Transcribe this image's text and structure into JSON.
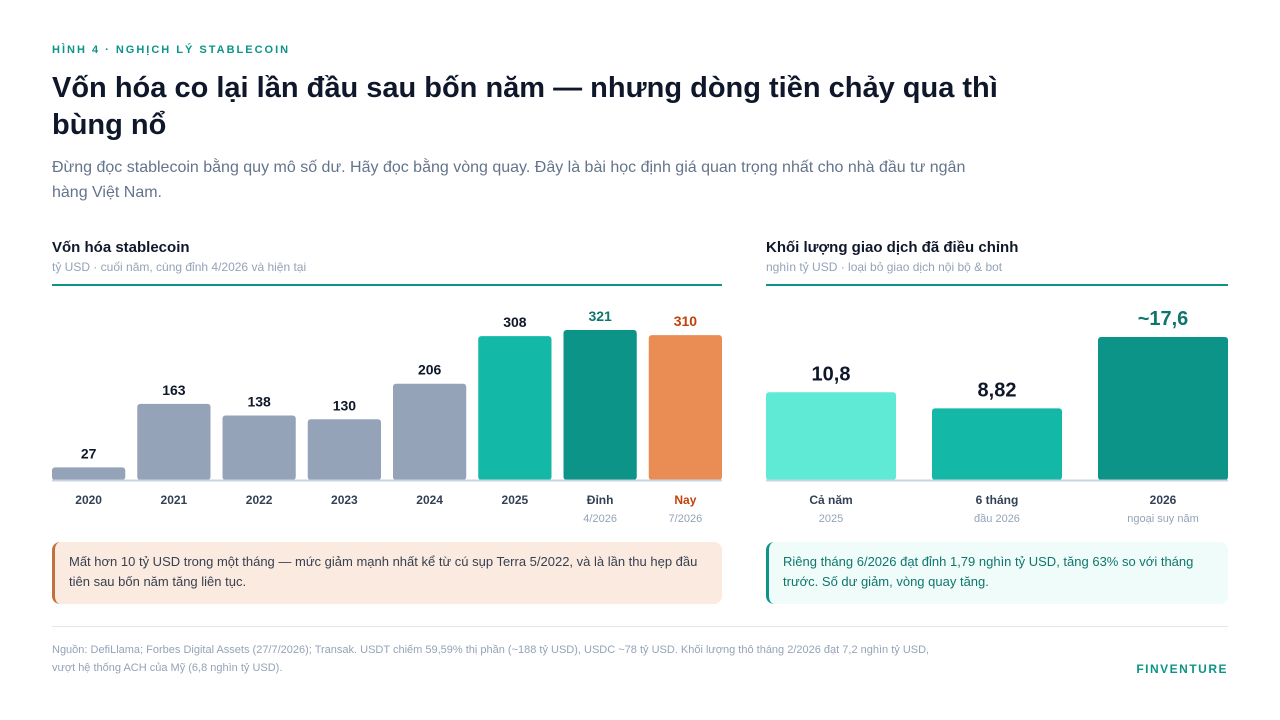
{
  "header": {
    "eyebrow": "HÌNH 4 · NGHỊCH LÝ STABLECOIN",
    "title": "Vốn hóa co lại lần đầu sau bốn năm — nhưng dòng tiền chảy qua thì bùng nổ",
    "subtitle": "Đừng đọc stablecoin bằng quy mô số dư. Hãy đọc bằng vòng quay. Đây là bài học định giá quan trọng nhất cho nhà đầu tư ngân hàng Việt Nam."
  },
  "colors": {
    "gray_bar": "#94a3b8",
    "teal_light": "#14b8a6",
    "teal_dark": "#0d9488",
    "orange": "#e98d55",
    "mint": "#5eead4",
    "accent_text_teal": "#0f766e",
    "accent_text_orange": "#c2410c"
  },
  "chart_data": [
    {
      "type": "bar",
      "title": "Vốn hóa stablecoin",
      "subtitle": "tỷ USD · cuối năm, cùng đỉnh 4/2026 và hiện tại",
      "categories": [
        "2020",
        "2021",
        "2022",
        "2023",
        "2024",
        "2025",
        "Đỉnh",
        "Nay"
      ],
      "category_sublabels": [
        "",
        "",
        "",
        "",
        "",
        "",
        "4/2026",
        "7/2026"
      ],
      "values": [
        27,
        163,
        138,
        130,
        206,
        308,
        321,
        310
      ],
      "value_labels": [
        "27",
        "163",
        "138",
        "130",
        "206",
        "308",
        "321",
        "310"
      ],
      "bar_colors": [
        "#94a3b8",
        "#94a3b8",
        "#94a3b8",
        "#94a3b8",
        "#94a3b8",
        "#14b8a6",
        "#0d9488",
        "#e98d55"
      ],
      "label_colors": [
        "#0f172a",
        "#0f172a",
        "#0f172a",
        "#0f172a",
        "#0f172a",
        "#0f172a",
        "#0f766e",
        "#c2410c"
      ],
      "ylim": [
        0,
        321
      ]
    },
    {
      "type": "bar",
      "title": "Khối lượng giao dịch đã điều chỉnh",
      "subtitle": "nghìn tỷ USD · loại bỏ giao dịch nội bộ & bot",
      "categories": [
        "Cả năm",
        "6 tháng",
        "2026"
      ],
      "category_sublabels": [
        "2025",
        "đầu 2026",
        "ngoại suy năm"
      ],
      "values": [
        10.8,
        8.82,
        17.6
      ],
      "value_labels": [
        "10,8",
        "8,82",
        "~17,6"
      ],
      "bar_colors": [
        "#5eead4",
        "#14b8a6",
        "#0d9488"
      ],
      "label_colors": [
        "#0f172a",
        "#0f172a",
        "#0f766e"
      ],
      "ylim": [
        0,
        17.6
      ]
    }
  ],
  "notes": {
    "left": "Mất hơn 10 tỷ USD trong một tháng — mức giảm mạnh nhất kể từ cú sụp Terra 5/2022, và là lần thu hẹp đầu tiên sau bốn năm tăng liên tục.",
    "right": "Riêng tháng 6/2026 đạt đỉnh 1,79 nghìn tỷ USD, tăng 63% so với tháng trước. Số dư giảm, vòng quay tăng."
  },
  "footer": {
    "source": "Nguồn: DefiLlama; Forbes Digital Assets (27/7/2026); Transak. USDT chiếm 59,59% thị phần (~188 tỷ USD), USDC ~78 tỷ USD. Khối lượng thô tháng 2/2026 đạt 7,2 nghìn tỷ USD, vượt hệ thống ACH của Mỹ (6,8 nghìn tỷ USD).",
    "brand": "FINVENTURE"
  }
}
